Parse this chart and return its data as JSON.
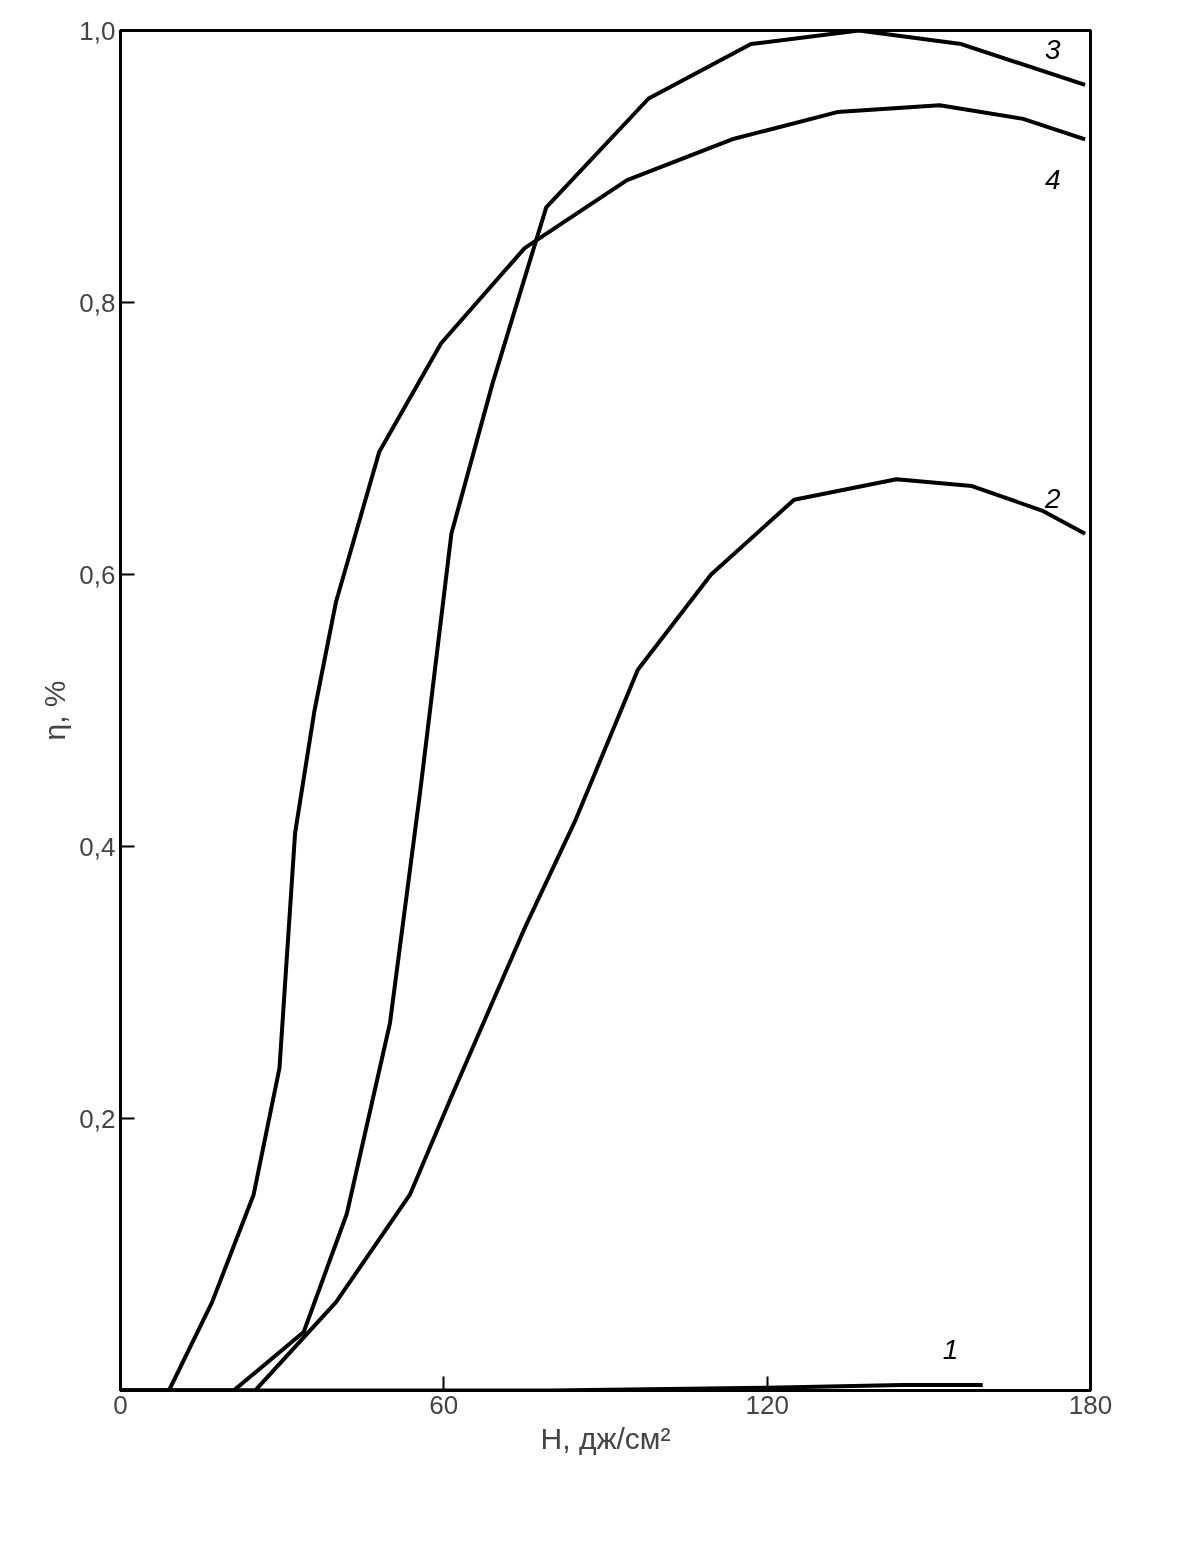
{
  "chart_data": {
    "type": "line",
    "xlabel": "H, дж/см²",
    "ylabel": "η, %",
    "xlim": [
      0,
      180
    ],
    "ylim": [
      0,
      1.0
    ],
    "xticks": [
      0,
      60,
      120,
      180
    ],
    "yticks": [
      {
        "value": 0.2,
        "label": "0,2"
      },
      {
        "value": 0.4,
        "label": "0,4"
      },
      {
        "value": 0.6,
        "label": "0,6"
      },
      {
        "value": 0.8,
        "label": "0,8"
      },
      {
        "value": 1.0,
        "label": "1,0"
      }
    ],
    "grid": false,
    "legend": false,
    "marker": "none",
    "line_style": "solid",
    "series": [
      {
        "name": "1",
        "color": "#000000",
        "x": [
          0,
          40,
          80,
          120,
          145,
          160
        ],
        "values": [
          0,
          0,
          0,
          0.002,
          0.004,
          0.004
        ]
      },
      {
        "name": "2",
        "color": "#000000",
        "x": [
          0,
          25,
          40,
          53.7,
          61.4,
          75,
          84.5,
          96,
          109.6,
          125,
          144,
          158,
          171,
          179
        ],
        "values": [
          0,
          0,
          0.065,
          0.144,
          0.216,
          0.34,
          0.42,
          0.53,
          0.6,
          0.655,
          0.67,
          0.665,
          0.647,
          0.63
        ]
      },
      {
        "name": "3",
        "color": "#000000",
        "x": [
          0,
          21,
          34,
          42,
          50,
          55.6,
          61.4,
          69,
          79,
          98,
          117,
          137,
          156,
          179
        ],
        "values": [
          0,
          0,
          0.043,
          0.13,
          0.27,
          0.44,
          0.63,
          0.74,
          0.87,
          0.95,
          0.99,
          1.0,
          0.99,
          0.96
        ]
      },
      {
        "name": "4",
        "color": "#000000",
        "x": [
          0,
          9,
          17,
          24.7,
          29.5,
          32.4,
          36,
          40,
          48,
          59.5,
          75,
          94,
          113.5,
          133,
          152,
          167.5,
          179
        ],
        "values": [
          0,
          0,
          0.065,
          0.144,
          0.237,
          0.41,
          0.5,
          0.58,
          0.69,
          0.77,
          0.84,
          0.89,
          0.92,
          0.94,
          0.945,
          0.935,
          0.92
        ]
      }
    ]
  }
}
